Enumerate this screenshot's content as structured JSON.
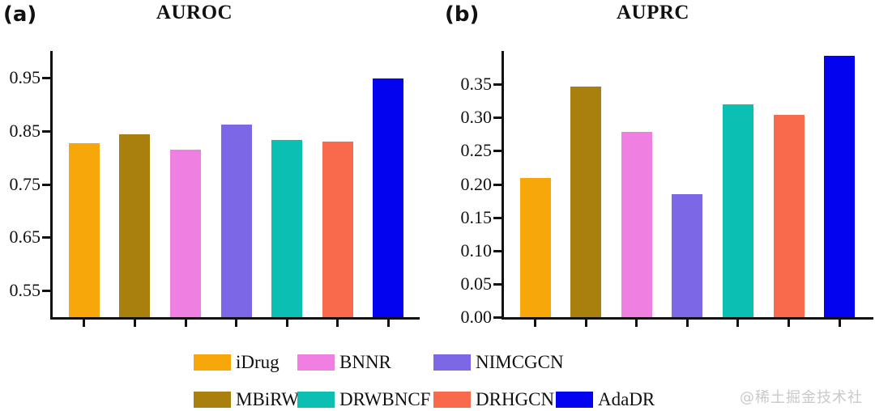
{
  "figure": {
    "panels": [
      {
        "label": "(a)",
        "title": "AUROC"
      },
      {
        "label": "(b)",
        "title": "AUPRC"
      }
    ],
    "watermark": "@稀土掘金技术社区"
  },
  "colors": {
    "iDrug": "#F7A70A",
    "MBiRW": "#A97F0E",
    "BNNR": "#EF80E1",
    "NIMCGCN": "#7C68E6",
    "DRWBNCF": "#0BC0B2",
    "DRHGCN": "#F9694C",
    "AdaDR": "#0303F0",
    "axis": "#111111",
    "watermark_gray": "#C9C9C9"
  },
  "chart_data": [
    {
      "type": "bar",
      "title": "AUROC",
      "categories": [
        "iDrug",
        "MBiRW",
        "BNNR",
        "NIMCGCN",
        "DRWBNCF",
        "DRHGCN",
        "AdaDR"
      ],
      "values": [
        0.826,
        0.843,
        0.814,
        0.862,
        0.833,
        0.83,
        0.949
      ],
      "bar_colors": [
        "#F7A70A",
        "#A97F0E",
        "#EF80E1",
        "#7C68E6",
        "#0BC0B2",
        "#F9694C",
        "#0303F0"
      ],
      "xlabel": "",
      "ylabel": "",
      "ylim": [
        0.5,
        1.0
      ],
      "yticks": [
        0.55,
        0.65,
        0.75,
        0.85,
        0.95
      ],
      "ytick_labels": [
        "0.55",
        "0.65",
        "0.75",
        "0.85",
        "0.95"
      ],
      "grid": false,
      "legend_position": "bottom-shared"
    },
    {
      "type": "bar",
      "title": "AUPRC",
      "categories": [
        "iDrug",
        "MBiRW",
        "BNNR",
        "NIMCGCN",
        "DRWBNCF",
        "DRHGCN",
        "AdaDR"
      ],
      "values": [
        0.209,
        0.346,
        0.278,
        0.185,
        0.32,
        0.304,
        0.393
      ],
      "bar_colors": [
        "#F7A70A",
        "#A97F0E",
        "#EF80E1",
        "#7C68E6",
        "#0BC0B2",
        "#F9694C",
        "#0303F0"
      ],
      "xlabel": "",
      "ylabel": "",
      "ylim": [
        0.0,
        0.4
      ],
      "yticks": [
        0.0,
        0.05,
        0.1,
        0.15,
        0.2,
        0.25,
        0.3,
        0.35
      ],
      "ytick_labels": [
        "0.00",
        "0.05",
        "0.10",
        "0.15",
        "0.20",
        "0.25",
        "0.30",
        "0.35"
      ],
      "grid": false,
      "legend_position": "bottom-shared"
    }
  ],
  "legend": {
    "rows": [
      [
        {
          "label": "iDrug",
          "color": "#F7A70A"
        },
        {
          "label": "BNNR",
          "color": "#EF80E1"
        },
        {
          "label": "NIMCGCN",
          "color": "#7C68E6"
        }
      ],
      [
        {
          "label": "MBiRW",
          "color": "#A97F0E"
        },
        {
          "label": "DRWBNCF",
          "color": "#0BC0B2"
        },
        {
          "label": "DRHGCN",
          "color": "#F9694C"
        },
        {
          "label": "AdaDR",
          "color": "#0303F0"
        }
      ]
    ]
  }
}
